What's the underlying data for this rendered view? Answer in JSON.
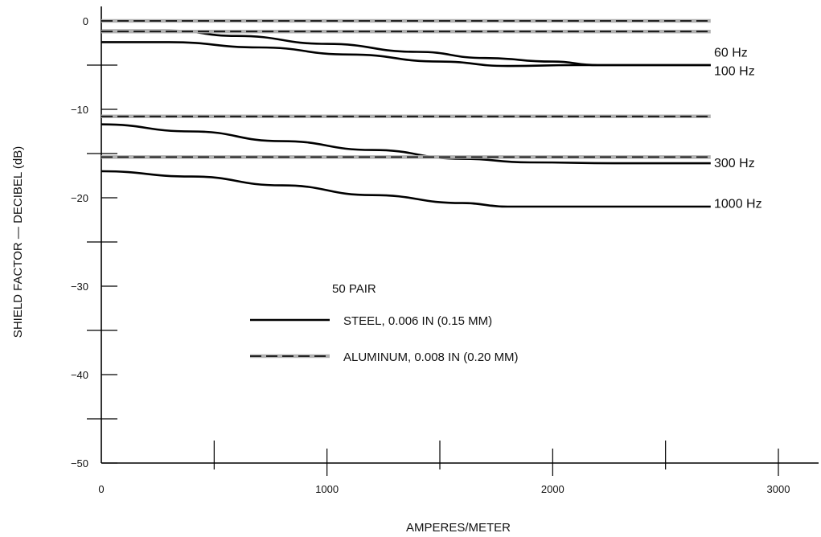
{
  "chart_data": {
    "type": "line",
    "title": "",
    "xlabel": "AMPERES/METER",
    "ylabel": "SHIELD FACTOR — DECIBEL (dB)",
    "xlim": [
      0,
      3000
    ],
    "ylim": [
      -50,
      0
    ],
    "x_ticks": [
      0,
      1000,
      2000,
      3000
    ],
    "x_minor_ticks": [
      500,
      1500,
      2500
    ],
    "y_ticks": [
      0,
      -10,
      -20,
      -30,
      -40,
      -50
    ],
    "y_minor_ticks": [
      -5,
      -15,
      -25,
      -35,
      -45
    ],
    "grid": false,
    "legend_position": "center",
    "legend": {
      "header": "50 PAIR",
      "entries": [
        {
          "label": "STEEL, 0.006 IN (0.15 MM)",
          "style": "solid"
        },
        {
          "label": "ALUMINUM, 0.008 IN (0.20 MM)",
          "style": "dashed"
        }
      ]
    },
    "series": [
      {
        "material": "steel",
        "freq": "60 Hz",
        "label": "60 Hz",
        "label_y": -3.5,
        "style": "solid",
        "points": [
          [
            0,
            -1.1
          ],
          [
            300,
            -1.1
          ],
          [
            600,
            -1.7
          ],
          [
            1000,
            -2.6
          ],
          [
            1400,
            -3.5
          ],
          [
            1700,
            -4.2
          ],
          [
            2000,
            -4.6
          ],
          [
            2200,
            -5.0
          ],
          [
            2700,
            -5.0
          ]
        ]
      },
      {
        "material": "steel",
        "freq": "100 Hz",
        "label": "100 Hz",
        "label_y": -5.6,
        "style": "solid",
        "points": [
          [
            0,
            -2.4
          ],
          [
            300,
            -2.4
          ],
          [
            700,
            -3.0
          ],
          [
            1100,
            -3.8
          ],
          [
            1500,
            -4.6
          ],
          [
            1800,
            -5.1
          ],
          [
            2100,
            -5.0
          ],
          [
            2700,
            -5.0
          ]
        ]
      },
      {
        "material": "steel",
        "freq": "300 Hz",
        "label": "300 Hz",
        "label_y": -16.0,
        "style": "solid",
        "points": [
          [
            0,
            -11.7
          ],
          [
            400,
            -12.5
          ],
          [
            800,
            -13.6
          ],
          [
            1200,
            -14.6
          ],
          [
            1600,
            -15.6
          ],
          [
            1900,
            -16.0
          ],
          [
            2300,
            -16.1
          ],
          [
            2700,
            -16.1
          ]
        ]
      },
      {
        "material": "steel",
        "freq": "1000 Hz",
        "label": "1000 Hz",
        "label_y": -20.6,
        "style": "solid",
        "points": [
          [
            0,
            -17.0
          ],
          [
            400,
            -17.6
          ],
          [
            800,
            -18.6
          ],
          [
            1200,
            -19.7
          ],
          [
            1600,
            -20.6
          ],
          [
            1800,
            -21.0
          ],
          [
            2700,
            -21.0
          ]
        ]
      },
      {
        "material": "aluminum",
        "freq": "60 Hz",
        "style": "dashed",
        "points": [
          [
            0,
            0.0
          ],
          [
            2700,
            0.0
          ]
        ]
      },
      {
        "material": "aluminum",
        "freq": "100 Hz",
        "style": "dashed",
        "points": [
          [
            0,
            -1.2
          ],
          [
            2700,
            -1.2
          ]
        ]
      },
      {
        "material": "aluminum",
        "freq": "300 Hz",
        "style": "dashed",
        "points": [
          [
            0,
            -10.8
          ],
          [
            2700,
            -10.8
          ]
        ]
      },
      {
        "material": "aluminum",
        "freq": "1000 Hz",
        "style": "dashed",
        "points": [
          [
            0,
            -15.4
          ],
          [
            2700,
            -15.4
          ]
        ]
      }
    ]
  }
}
